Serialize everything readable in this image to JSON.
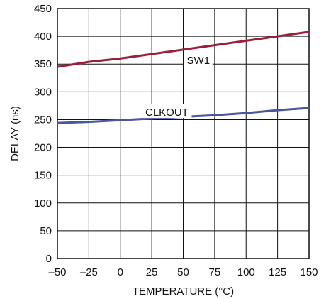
{
  "chart_data": {
    "type": "line",
    "title": "",
    "xlabel": "TEMPERATURE (°C)",
    "ylabel": "DELAY (ns)",
    "xlim": [
      -50,
      150
    ],
    "ylim": [
      0,
      450
    ],
    "x_ticks": [
      "–50",
      "–25",
      "0",
      "25",
      "50",
      "75",
      "100",
      "125",
      "150"
    ],
    "y_ticks": [
      "0",
      "50",
      "100",
      "150",
      "200",
      "250",
      "300",
      "350",
      "400",
      "450"
    ],
    "grid": true,
    "legend": "none",
    "series": [
      {
        "name": "SW1",
        "color": "#9c1d3c",
        "x": [
          -50,
          -25,
          0,
          25,
          50,
          75,
          100,
          125,
          150
        ],
        "y": [
          345,
          354,
          360,
          368,
          376,
          384,
          392,
          400,
          408
        ]
      },
      {
        "name": "CLKOUT",
        "color": "#4a55a2",
        "x": [
          -50,
          -25,
          0,
          25,
          50,
          75,
          100,
          125,
          150
        ],
        "y": [
          244,
          246,
          249,
          252,
          255,
          258,
          262,
          267,
          271
        ]
      }
    ]
  }
}
